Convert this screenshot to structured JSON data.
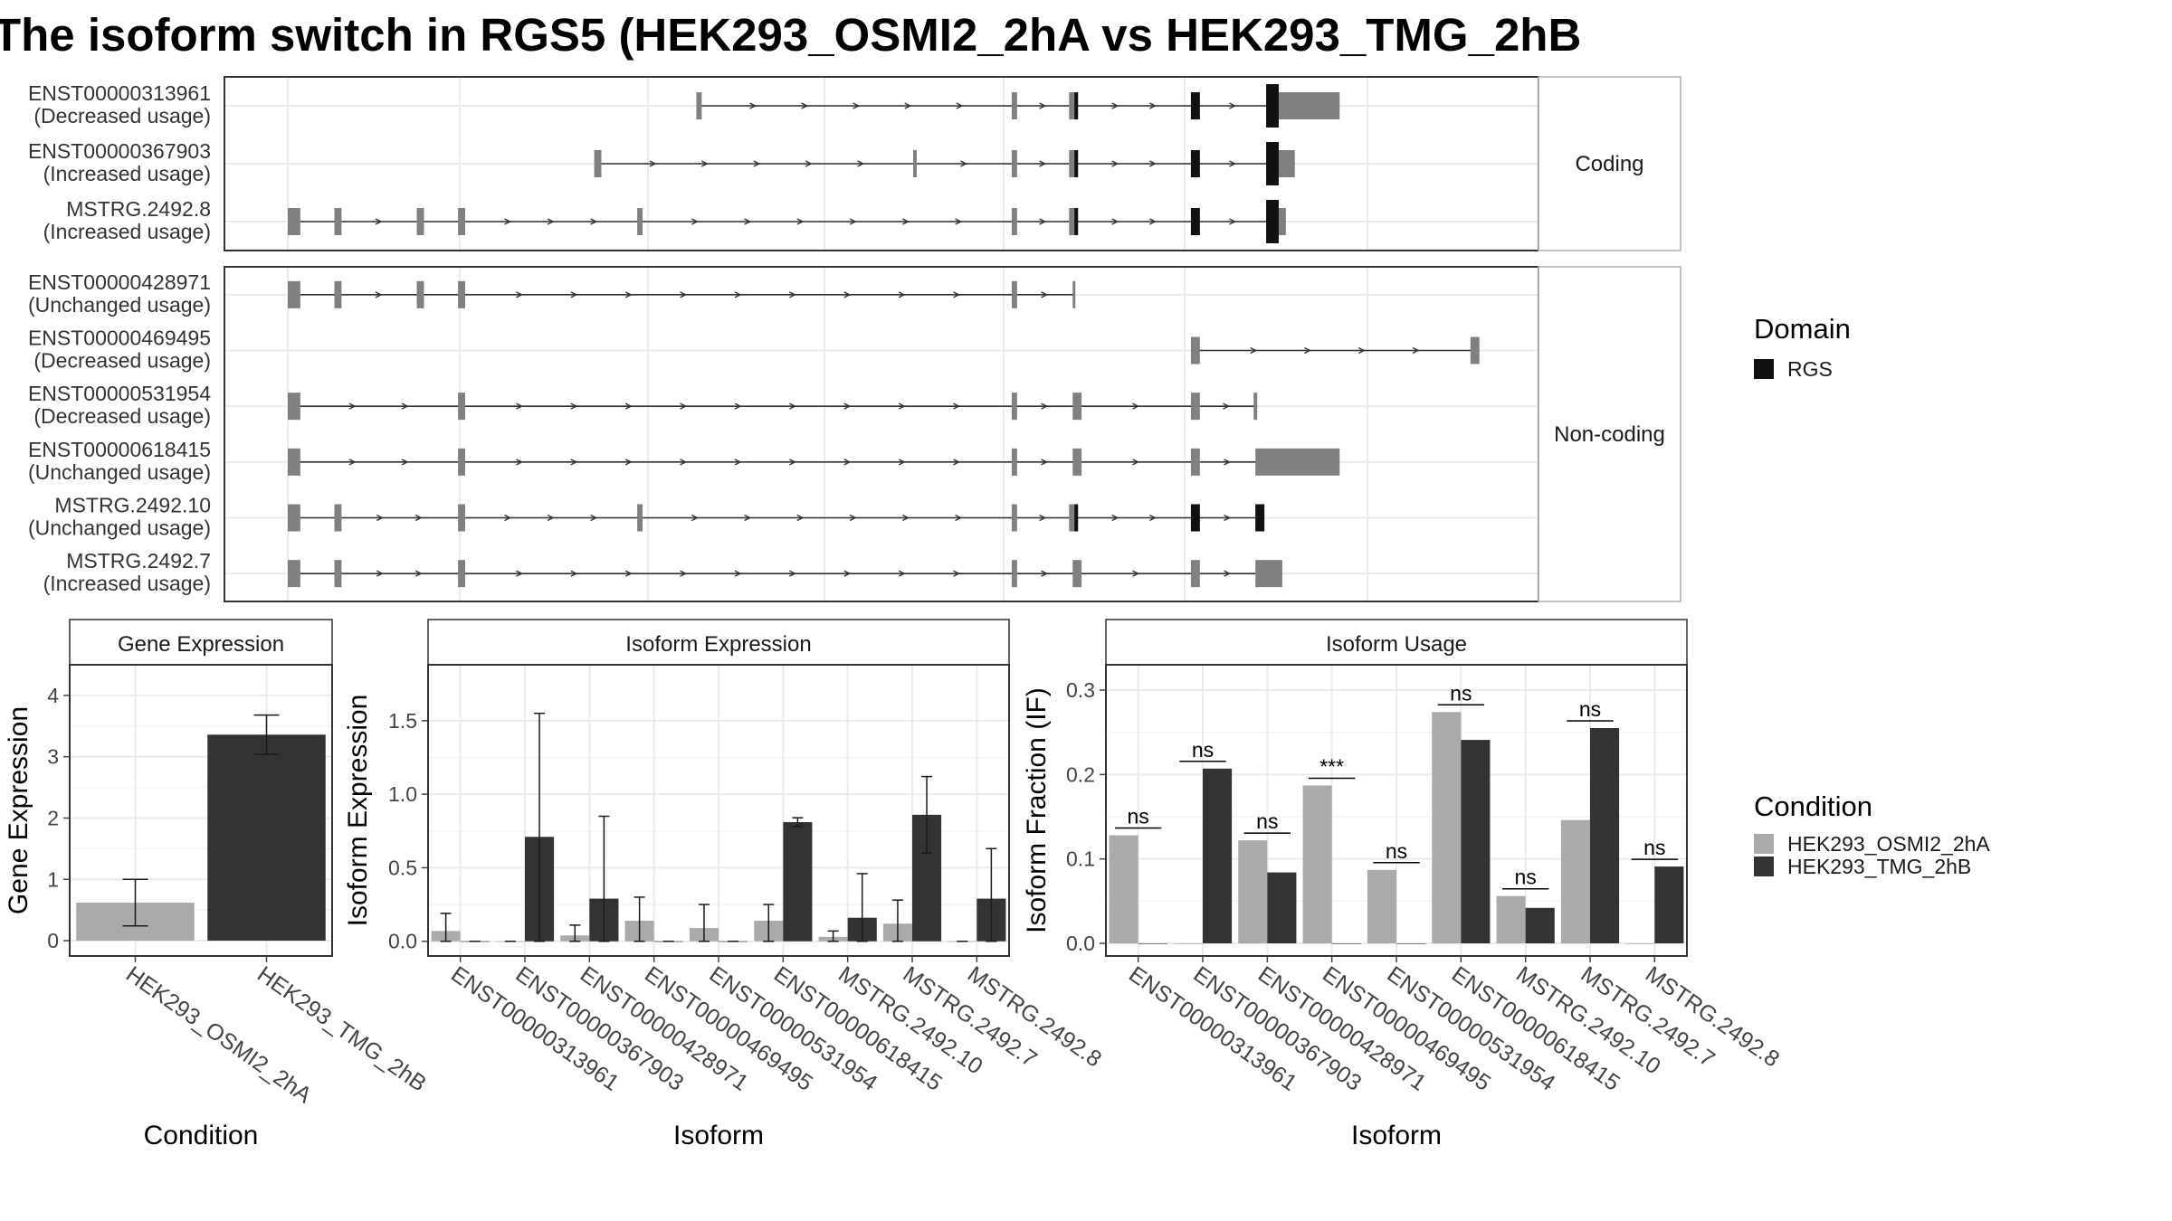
{
  "title": "The isoform switch in RGS5 (HEK293_OSMI2_2hA vs HEK293_TMG_2hB",
  "colors": {
    "exon": "#808080",
    "domain": "#111111",
    "intron": "#333333",
    "grid": "#ebebeb",
    "condition_a": "#aaaaaa",
    "condition_b": "#333333"
  },
  "structure_panels": [
    {
      "strip": "Coding",
      "isoforms": [
        {
          "name": "ENST00000313961",
          "usage": "(Decreased usage)",
          "exons": [
            [
              2.28,
              2.31
            ],
            [
              4.04,
              4.07
            ],
            [
              4.36,
              4.41
            ],
            [
              5.04,
              5.09
            ],
            [
              5.46,
              5.53
            ],
            [
              5.53,
              5.87
            ]
          ],
          "domain_exons": [
            [
              4.39,
              4.41
            ],
            [
              5.04,
              5.09
            ],
            [
              5.46,
              5.53
            ]
          ],
          "thick": [
            [
              5.46,
              5.53
            ]
          ]
        },
        {
          "name": "ENST00000367903",
          "usage": "(Increased usage)",
          "exons": [
            [
              1.71,
              1.75
            ],
            [
              3.49,
              3.51
            ],
            [
              4.04,
              4.07
            ],
            [
              4.36,
              4.41
            ],
            [
              5.04,
              5.09
            ],
            [
              5.46,
              5.53
            ],
            [
              5.53,
              5.62
            ]
          ],
          "domain_exons": [
            [
              4.39,
              4.41
            ],
            [
              5.04,
              5.09
            ],
            [
              5.46,
              5.53
            ]
          ],
          "thick": [
            [
              5.46,
              5.53
            ]
          ]
        },
        {
          "name": "MSTRG.2492.8",
          "usage": "(Increased usage)",
          "exons": [
            [
              0,
              0.07
            ],
            [
              0.26,
              0.3
            ],
            [
              0.72,
              0.76
            ],
            [
              0.95,
              0.99
            ],
            [
              1.95,
              1.98
            ],
            [
              4.04,
              4.07
            ],
            [
              4.36,
              4.41
            ],
            [
              5.04,
              5.09
            ],
            [
              5.46,
              5.53
            ],
            [
              5.53,
              5.57
            ]
          ],
          "domain_exons": [
            [
              4.39,
              4.41
            ],
            [
              5.04,
              5.09
            ],
            [
              5.46,
              5.53
            ]
          ],
          "thick": [
            [
              5.46,
              5.53
            ]
          ]
        }
      ]
    },
    {
      "strip": "Non-coding",
      "isoforms": [
        {
          "name": "ENST00000428971",
          "usage": "(Unchanged usage)",
          "exons": [
            [
              0,
              0.07
            ],
            [
              0.26,
              0.3
            ],
            [
              0.72,
              0.76
            ],
            [
              0.95,
              0.99
            ],
            [
              4.04,
              4.07
            ],
            [
              4.38,
              4.39
            ]
          ],
          "domain_exons": [],
          "thick": []
        },
        {
          "name": "ENST00000469495",
          "usage": "(Decreased usage)",
          "exons": [
            [
              5.04,
              5.09
            ],
            [
              6.6,
              6.65
            ]
          ],
          "domain_exons": [],
          "thick": []
        },
        {
          "name": "ENST00000531954",
          "usage": "(Decreased usage)",
          "exons": [
            [
              0,
              0.07
            ],
            [
              0.95,
              0.99
            ],
            [
              4.04,
              4.07
            ],
            [
              4.38,
              4.43
            ],
            [
              5.04,
              5.09
            ],
            [
              5.39,
              5.41
            ]
          ],
          "domain_exons": [],
          "thick": []
        },
        {
          "name": "ENST00000618415",
          "usage": "(Unchanged usage)",
          "exons": [
            [
              0,
              0.07
            ],
            [
              0.95,
              0.99
            ],
            [
              4.04,
              4.07
            ],
            [
              4.38,
              4.43
            ],
            [
              5.04,
              5.09
            ],
            [
              5.4,
              5.87
            ]
          ],
          "domain_exons": [],
          "thick": []
        },
        {
          "name": "MSTRG.2492.10",
          "usage": "(Unchanged usage)",
          "exons": [
            [
              0,
              0.07
            ],
            [
              0.26,
              0.3
            ],
            [
              0.95,
              0.99
            ],
            [
              1.95,
              1.98
            ],
            [
              4.04,
              4.07
            ],
            [
              4.36,
              4.41
            ],
            [
              5.04,
              5.09
            ],
            [
              5.4,
              5.45
            ]
          ],
          "domain_exons": [
            [
              4.39,
              4.41
            ],
            [
              5.04,
              5.09
            ],
            [
              5.4,
              5.45
            ]
          ],
          "thick": []
        },
        {
          "name": "MSTRG.2492.7",
          "usage": "(Increased usage)",
          "exons": [
            [
              0,
              0.07
            ],
            [
              0.26,
              0.3
            ],
            [
              0.95,
              0.99
            ],
            [
              4.04,
              4.07
            ],
            [
              4.38,
              4.43
            ],
            [
              5.04,
              5.09
            ],
            [
              5.4,
              5.55
            ]
          ],
          "domain_exons": [],
          "thick": []
        }
      ]
    }
  ],
  "legends": {
    "domain": {
      "title": "Domain",
      "items": [
        {
          "label": "RGS",
          "color": "#111111"
        }
      ]
    },
    "condition": {
      "title": "Condition",
      "items": [
        {
          "label": "HEK293_OSMI2_2hA",
          "color": "#aaaaaa"
        },
        {
          "label": "HEK293_TMG_2hB",
          "color": "#333333"
        }
      ]
    }
  },
  "chart_data": [
    {
      "type": "bar",
      "strip": "Gene Expression",
      "xlabel": "Condition",
      "ylabel": "Gene Expression",
      "categories": [
        "HEK293_OSMI2_2hA",
        "HEK293_TMG_2hB"
      ],
      "values": [
        0.62,
        3.36
      ],
      "error_low": [
        0.24,
        3.04
      ],
      "error_high": [
        1.0,
        3.68
      ],
      "ylim": [
        -0.25,
        4.5
      ],
      "yticks": [
        0,
        1,
        2,
        3,
        4
      ]
    },
    {
      "type": "bar",
      "strip": "Isoform Expression",
      "xlabel": "Isoform",
      "ylabel": "Isoform Expression",
      "categories": [
        "ENST00000313961",
        "ENST00000367903",
        "ENST00000428971",
        "ENST00000469495",
        "ENST00000531954",
        "ENST00000618415",
        "MSTRG.2492.10",
        "MSTRG.2492.7",
        "MSTRG.2492.8"
      ],
      "series": [
        {
          "name": "HEK293_OSMI2_2hA",
          "values": [
            0.07,
            0.0,
            0.04,
            0.14,
            0.09,
            0.14,
            0.03,
            0.12,
            0.0
          ],
          "error_low": [
            0.0,
            0.0,
            0.0,
            0.0,
            0.0,
            0.0,
            0.0,
            0.0,
            0.0
          ],
          "error_high": [
            0.19,
            0.0,
            0.11,
            0.3,
            0.25,
            0.25,
            0.07,
            0.28,
            0.0
          ]
        },
        {
          "name": "HEK293_TMG_2hB",
          "values": [
            0.0,
            0.71,
            0.29,
            0.0,
            0.0,
            0.81,
            0.16,
            0.86,
            0.29
          ],
          "error_low": [
            0.0,
            0.0,
            0.0,
            0.0,
            0.0,
            0.78,
            0.0,
            0.6,
            0.0
          ],
          "error_high": [
            0.0,
            1.55,
            0.85,
            0.0,
            0.0,
            0.84,
            0.46,
            1.12,
            0.63
          ]
        }
      ],
      "ylim": [
        -0.1,
        1.88
      ],
      "yticks": [
        0.0,
        0.5,
        1.0,
        1.5
      ]
    },
    {
      "type": "bar",
      "strip": "Isoform Usage",
      "xlabel": "Isoform",
      "ylabel": "Isoform Fraction (IF)",
      "categories": [
        "ENST00000313961",
        "ENST00000367903",
        "ENST00000428971",
        "ENST00000469495",
        "ENST00000531954",
        "ENST00000618415",
        "MSTRG.2492.10",
        "MSTRG.2492.7",
        "MSTRG.2492.8"
      ],
      "series": [
        {
          "name": "HEK293_OSMI2_2hA",
          "values": [
            0.128,
            0.0,
            0.122,
            0.187,
            0.087,
            0.274,
            0.056,
            0.146,
            0.0
          ]
        },
        {
          "name": "HEK293_TMG_2hB",
          "values": [
            0.0,
            0.207,
            0.084,
            0.0,
            0.0,
            0.241,
            0.042,
            0.255,
            0.091
          ]
        }
      ],
      "significance": [
        "ns",
        "ns",
        "ns",
        "***",
        "ns",
        "ns",
        "ns",
        "ns",
        "ns"
      ],
      "ylim": [
        -0.015,
        0.33
      ],
      "yticks": [
        0.0,
        0.1,
        0.2,
        0.3
      ]
    }
  ]
}
